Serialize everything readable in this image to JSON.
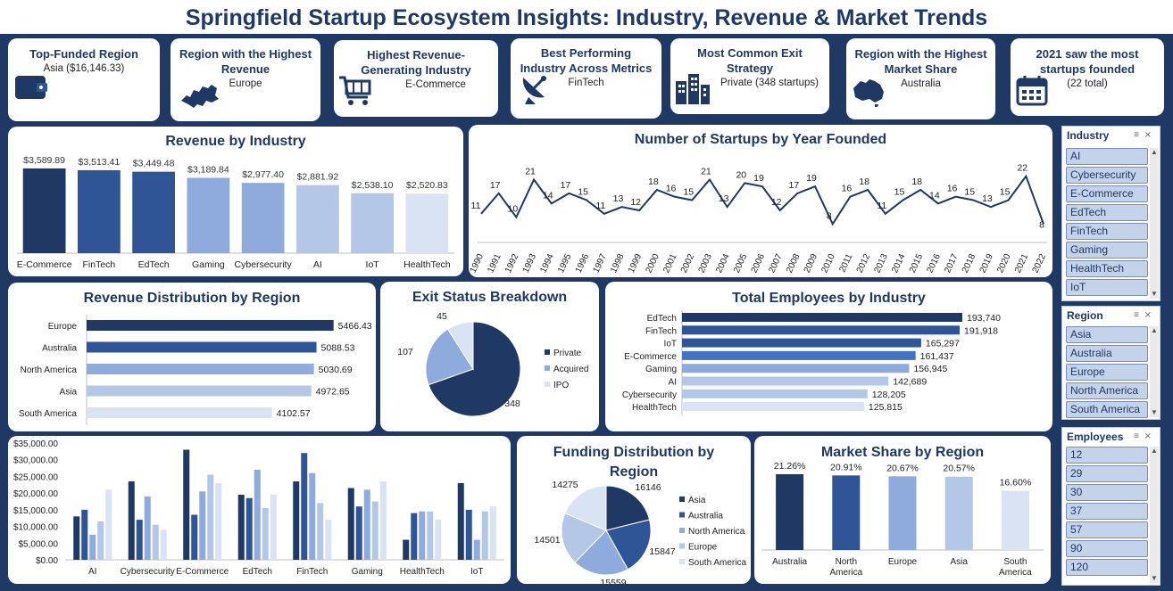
{
  "title": "Springfield Startup Ecosystem Insights: Industry, Revenue & Market Trends",
  "kpis": [
    {
      "title": "Top-Funded Region",
      "value": "Asia ($16,146.33)",
      "icon": "wallet-icon"
    },
    {
      "title": "Region with the Highest Revenue",
      "value": "Europe",
      "icon": "europe-map-icon"
    },
    {
      "title": "Highest Revenue-Generating Industry",
      "value": "E-Commerce",
      "icon": "shopping-cart-icon"
    },
    {
      "title": "Best Performing Industry Across Metrics",
      "value": "FinTech",
      "icon": "satellite-dish-icon"
    },
    {
      "title": "Most Common Exit Strategy",
      "value": "Private (348 startups)",
      "icon": "buildings-icon"
    },
    {
      "title": "Region with the Highest Market Share",
      "value": "Australia",
      "icon": "australia-map-icon"
    },
    {
      "title": "2021 saw the most startups founded",
      "value": "(22 total)",
      "icon": "calendar-icon"
    }
  ],
  "colors": {
    "navy": "#1f3864",
    "blue": "#2f5597",
    "mid": "#8faadc",
    "light": "#b4c7e7",
    "pale": "#dae3f3"
  },
  "chart_data": [
    {
      "id": "revenue_by_industry",
      "type": "bar",
      "title": "Revenue by Industry",
      "categories": [
        "E-Commerce",
        "FinTech",
        "EdTech",
        "Gaming",
        "Cybersecurity",
        "AI",
        "IoT",
        "HealthTech"
      ],
      "values": [
        3589.89,
        3513.41,
        3449.48,
        3189.84,
        2977.4,
        2881.92,
        2538.1,
        2520.83
      ],
      "labels": [
        "$3,589.89",
        "$3,513.41",
        "$3,449.48",
        "$3,189.84",
        "$2,977.40",
        "$2,881.92",
        "$2,538.10",
        "$2,520.83"
      ],
      "ylim": [
        0,
        3700
      ]
    },
    {
      "id": "startups_by_year",
      "type": "line",
      "title": "Number of Startups by Year Founded",
      "x": [
        "1990",
        "1991",
        "1992",
        "1993",
        "1994",
        "1995",
        "1996",
        "1997",
        "1998",
        "1999",
        "2000",
        "2001",
        "2002",
        "2003",
        "2004",
        "2005",
        "2006",
        "2007",
        "2008",
        "2009",
        "2010",
        "2011",
        "2012",
        "2013",
        "2014",
        "2015",
        "2016",
        "2017",
        "2018",
        "2019",
        "2020",
        "2021",
        "2022"
      ],
      "values": [
        11,
        17,
        10,
        21,
        14,
        17,
        15,
        11,
        13,
        12,
        18,
        16,
        15,
        21,
        13,
        20,
        19,
        12,
        17,
        19,
        8,
        16,
        18,
        11,
        15,
        18,
        14,
        16,
        15,
        13,
        15,
        22,
        8
      ],
      "ylim": [
        0,
        24
      ]
    },
    {
      "id": "revenue_by_region",
      "type": "bar",
      "orientation": "horizontal",
      "title": "Revenue Distribution by Region",
      "categories": [
        "Europe",
        "Australia",
        "North America",
        "Asia",
        "South America"
      ],
      "values": [
        5466.43,
        5088.53,
        5030.69,
        4972.65,
        4102.57
      ],
      "labels": [
        "5466.43",
        "5088.53",
        "5030.69",
        "4972.65",
        "4102.57"
      ],
      "xlim": [
        0,
        6000
      ]
    },
    {
      "id": "exit_status",
      "type": "pie",
      "title": "Exit Status Breakdown",
      "categories": [
        "Private",
        "Acquired",
        "IPO"
      ],
      "values": [
        348,
        107,
        45
      ],
      "labels": [
        "348",
        "107",
        "45"
      ],
      "legend": "right"
    },
    {
      "id": "employees_by_industry",
      "type": "bar",
      "orientation": "horizontal",
      "title": "Total Employees by Industry",
      "categories": [
        "EdTech",
        "FinTech",
        "IoT",
        "E-Commerce",
        "Gaming",
        "AI",
        "Cybersecurity",
        "HealthTech"
      ],
      "values": [
        193740,
        191918,
        165297,
        161437,
        156945,
        142689,
        128205,
        125815
      ],
      "labels": [
        "193,740",
        "191,918",
        "165,297",
        "161,437",
        "156,945",
        "142,689",
        "128,205",
        "125,815"
      ],
      "xlim": [
        0,
        225000
      ]
    },
    {
      "id": "industry_by_region",
      "type": "bar",
      "title": "",
      "categories": [
        "AI",
        "Cybersecurity",
        "E-Commerce",
        "EdTech",
        "FinTech",
        "Gaming",
        "HealthTech",
        "IoT"
      ],
      "series": [
        {
          "values": [
            13000,
            23500,
            33000,
            19500,
            23500,
            21500,
            6000,
            23000
          ]
        },
        {
          "values": [
            15000,
            12000,
            13500,
            18500,
            32000,
            16000,
            14000,
            15000
          ]
        },
        {
          "values": [
            7500,
            19000,
            20500,
            27000,
            26000,
            21000,
            14500,
            6000
          ]
        },
        {
          "values": [
            11500,
            10500,
            25500,
            15500,
            17000,
            17500,
            14500,
            14500
          ]
        },
        {
          "values": [
            21000,
            9000,
            23000,
            19500,
            12000,
            23500,
            12000,
            16000
          ]
        }
      ],
      "yticks": [
        "$0.00",
        "$5,000.00",
        "$10,000.00",
        "$15,000.00",
        "$20,000.00",
        "$25,000.00",
        "$30,000.00",
        "$35,000.00"
      ],
      "ylim": [
        0,
        35000
      ]
    },
    {
      "id": "funding_by_region",
      "type": "pie",
      "title": "Funding Distribution by Region",
      "categories": [
        "Asia",
        "Australia",
        "North America",
        "Europe",
        "South America"
      ],
      "values": [
        16146,
        15847,
        15559,
        14501,
        14275
      ],
      "labels": [
        "16146",
        "15847",
        "15559",
        "14501",
        "14275"
      ],
      "legend": "right"
    },
    {
      "id": "market_share_by_region",
      "type": "bar",
      "title": "Market Share by Region",
      "categories": [
        "Australia",
        "North America",
        "Europe",
        "Asia",
        "South America"
      ],
      "values": [
        21.26,
        20.91,
        20.67,
        20.57,
        16.6
      ],
      "labels": [
        "21.26%",
        "20.91%",
        "20.67%",
        "20.57%",
        "16.60%"
      ],
      "ylim": [
        0,
        23
      ]
    }
  ],
  "slicers": [
    {
      "title": "Industry",
      "items": [
        "AI",
        "Cybersecurity",
        "E-Commerce",
        "EdTech",
        "FinTech",
        "Gaming",
        "HealthTech",
        "IoT"
      ]
    },
    {
      "title": "Region",
      "items": [
        "Asia",
        "Australia",
        "Europe",
        "North America",
        "South America"
      ]
    },
    {
      "title": "Employees",
      "items": [
        "12",
        "29",
        "30",
        "37",
        "57",
        "90",
        "120"
      ]
    }
  ]
}
